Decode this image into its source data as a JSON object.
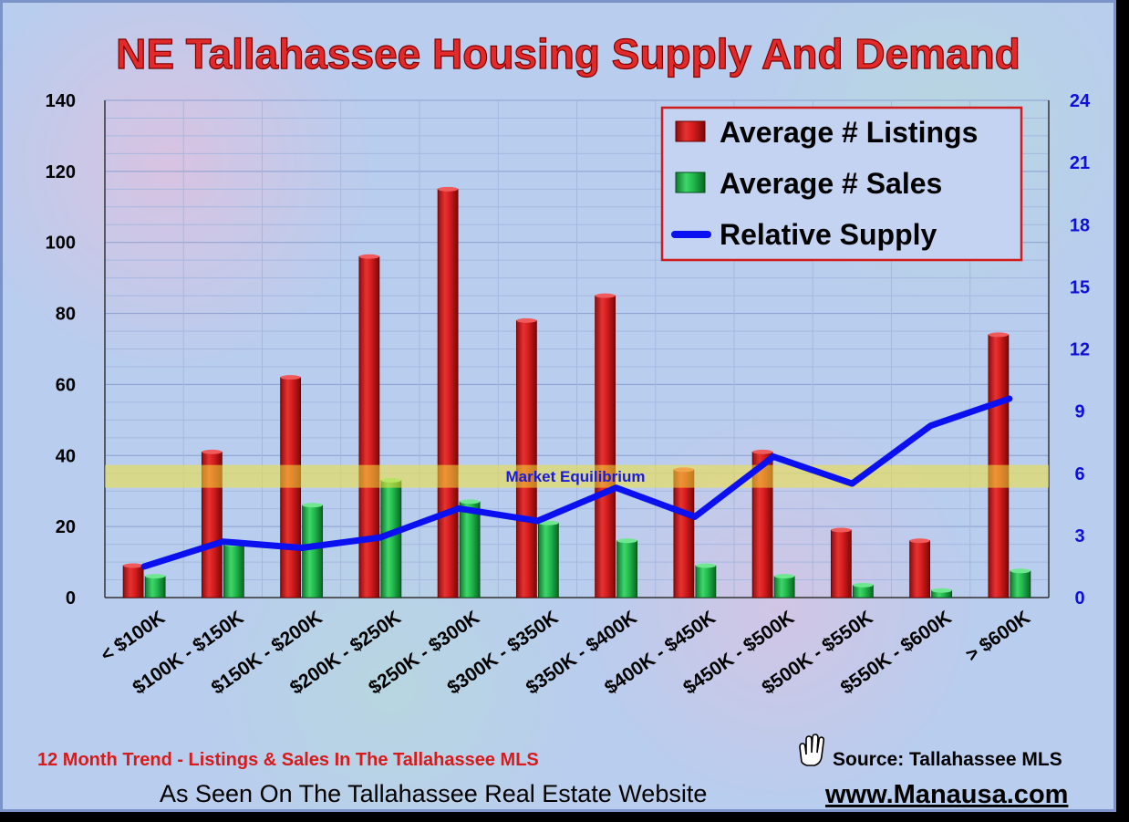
{
  "chart_data": {
    "type": "bar",
    "title": "NE Tallahassee Housing Supply And Demand",
    "categories": [
      "< $100K",
      "$100K - $150K",
      "$150K - $200K",
      "$200K - $250K",
      "$250K - $300K",
      "$300K - $350K",
      "$350K - $400K",
      "$400K - $450K",
      "$450K - $500K",
      "$500K - $550K",
      "$550K - $600K",
      "> $600K"
    ],
    "series": [
      {
        "name": "Average # Listings",
        "axis": "left",
        "type": "bar",
        "color": "#d81e1e",
        "values": [
          9,
          41,
          62,
          96,
          115,
          78,
          85,
          36,
          41,
          19,
          16,
          74
        ]
      },
      {
        "name": "Average # Sales",
        "axis": "left",
        "type": "bar",
        "color": "#1fb84a",
        "values": [
          6,
          15,
          26,
          33,
          27,
          21,
          16,
          9,
          6,
          3.5,
          2,
          7.5
        ]
      },
      {
        "name": "Relative Supply",
        "axis": "right",
        "type": "line",
        "color": "#0a10f0",
        "values": [
          1.5,
          2.7,
          2.4,
          2.9,
          4.3,
          3.7,
          5.3,
          3.9,
          6.8,
          5.5,
          8.3,
          9.6
        ]
      }
    ],
    "ylim_left": [
      0,
      140
    ],
    "yticks_left": [
      "0",
      "20",
      "40",
      "60",
      "80",
      "100",
      "120",
      "140"
    ],
    "ylim_right": [
      0,
      24
    ],
    "yticks_right": [
      "0",
      "3",
      "6",
      "9",
      "12",
      "15",
      "18",
      "21",
      "24"
    ],
    "grid": true,
    "legend": "top-right",
    "annotation": {
      "label": "Market Equilibrium",
      "band_low": 5.3,
      "band_high": 6.4,
      "axis": "right",
      "color": "#f2e23a"
    }
  },
  "footer": {
    "trend": "12 Month Trend - Listings & Sales In The Tallahassee MLS",
    "source": "Source: Tallahassee MLS",
    "seen_on": "As Seen On The Tallahassee Real Estate Website",
    "url": "www.Manausa.com",
    "hand_icon": "hand-pointer-icon"
  }
}
